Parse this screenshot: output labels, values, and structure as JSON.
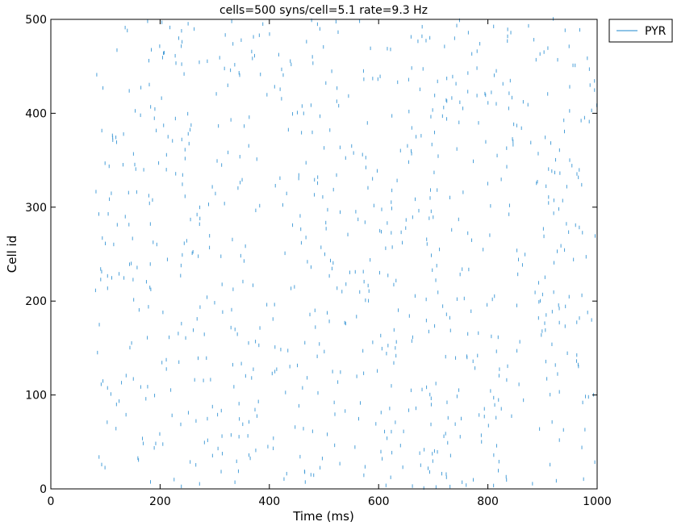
{
  "chart_data": {
    "type": "scatter",
    "title": "cells=500 syns/cell=5.1 rate=9.3 Hz",
    "xlabel": "Time (ms)",
    "ylabel": "Cell id",
    "xlim": [
      0,
      1000
    ],
    "ylim": [
      0,
      500
    ],
    "x_ticks": [
      "0",
      "200",
      "400",
      "600",
      "800",
      "1000"
    ],
    "y_ticks": [
      "0",
      "100",
      "200",
      "300",
      "400",
      "500"
    ],
    "grid": false,
    "legend_position": "outside-top-right",
    "marker": "short vertical tick",
    "series": [
      {
        "name": "PYR",
        "color": "#4a9fd8",
        "spike_time_range": [
          80,
          1000
        ],
        "cell_id_range": [
          0,
          500
        ],
        "num_cells": 500,
        "mean_rate_hz": 9.3
      }
    ]
  }
}
